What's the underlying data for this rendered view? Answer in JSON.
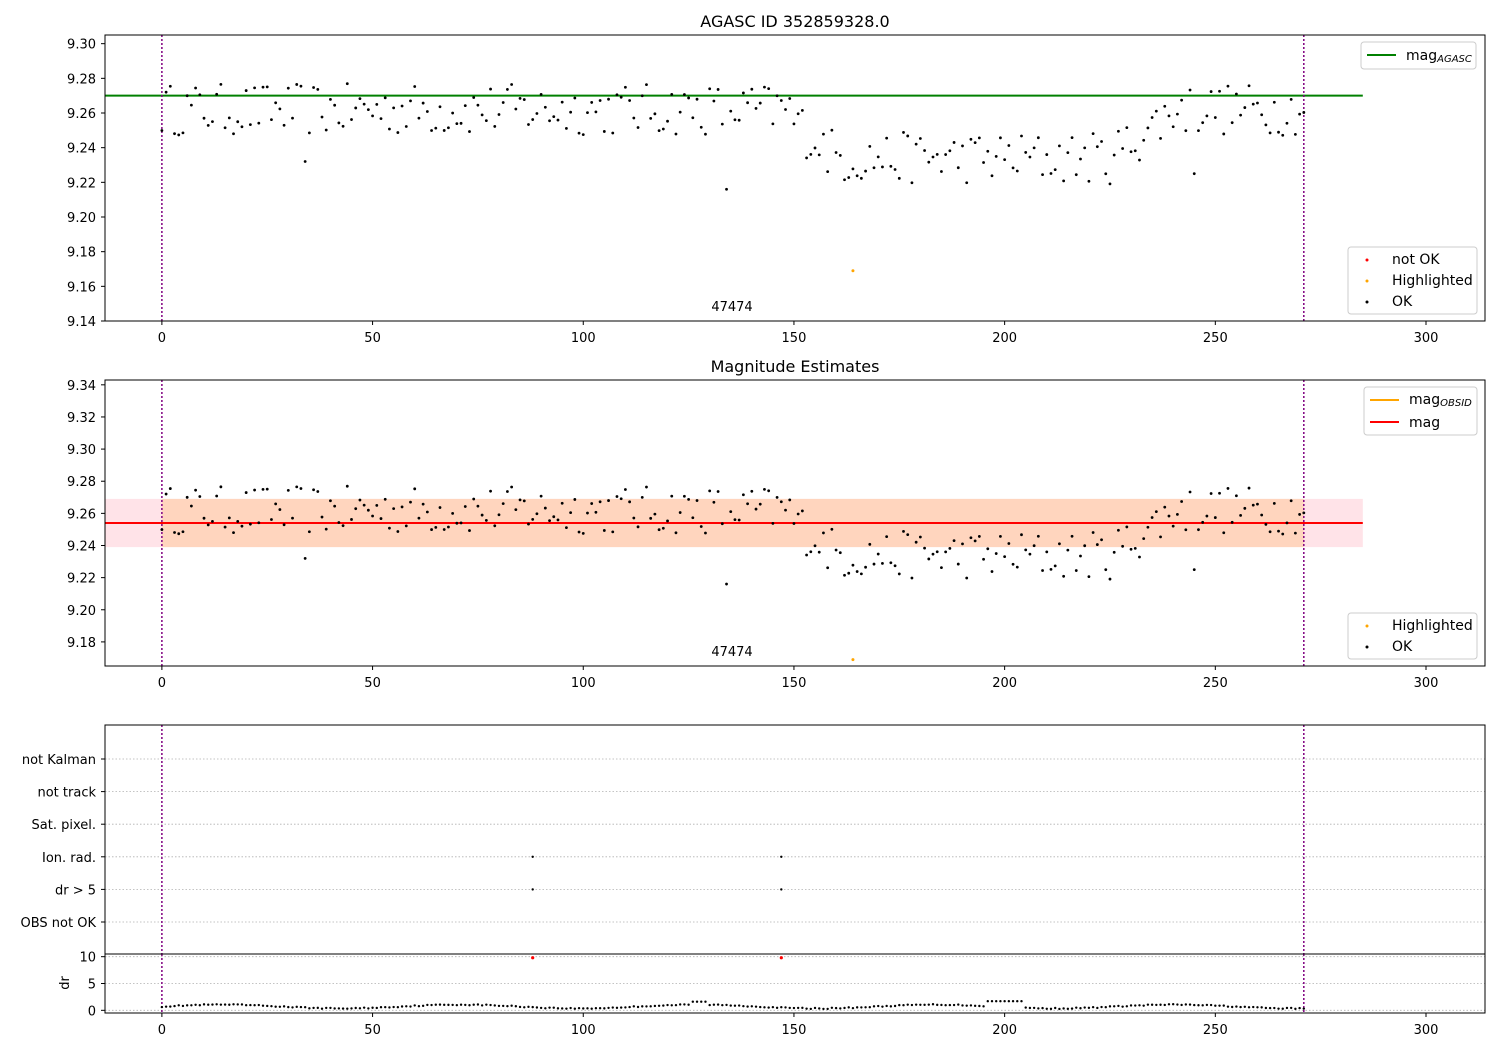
{
  "colors": {
    "agasc_line": "#008000",
    "mag_line": "#ff0000",
    "mag_obsid": "#ffa500",
    "band_outer": "#ffc0cb",
    "band_inner": "#ffd0b0",
    "ok_point": "#000000",
    "highlighted_point": "#ffa500",
    "not_ok_point": "#ff0000",
    "obs_boundary": "#800080",
    "grid": "#b0b0b0"
  },
  "chart_data": [
    {
      "id": "top",
      "type": "scatter",
      "title": "AGASC ID 352859328.0",
      "xlabel": "",
      "ylabel": "",
      "xlim": [
        -13.5,
        314
      ],
      "ylim": [
        9.14,
        9.305
      ],
      "xticks": [
        0,
        50,
        100,
        150,
        200,
        250,
        300
      ],
      "yticks": [
        "9.14",
        "9.16",
        "9.18",
        "9.20",
        "9.22",
        "9.24",
        "9.26",
        "9.28",
        "9.30"
      ],
      "obs_boundaries": [
        0,
        271
      ],
      "obs_label": "47474",
      "obs_label_x": 135.5,
      "agasc_mag": 9.27,
      "agasc_mag_x_range": [
        -13.5,
        285
      ],
      "highlighted_point": {
        "x": 164,
        "y": 9.169
      },
      "legends": [
        {
          "position": "upper right",
          "entries": [
            {
              "label": "mag",
              "subscript": "AGASC",
              "kind": "line",
              "color": "#008000"
            }
          ]
        },
        {
          "position": "lower right",
          "entries": [
            {
              "label": "not OK",
              "kind": "dot",
              "color": "#ff0000"
            },
            {
              "label": "Highlighted",
              "kind": "dot",
              "color": "#ffa500"
            },
            {
              "label": "OK",
              "kind": "dot",
              "color": "#000000"
            }
          ]
        }
      ]
    },
    {
      "id": "middle",
      "type": "scatter",
      "title": "Magnitude Estimates",
      "xlabel": "",
      "ylabel": "",
      "xlim": [
        -13.5,
        314
      ],
      "ylim": [
        9.165,
        9.343
      ],
      "xticks": [
        0,
        50,
        100,
        150,
        200,
        250,
        300
      ],
      "yticks": [
        "9.18",
        "9.20",
        "9.22",
        "9.24",
        "9.26",
        "9.28",
        "9.30",
        "9.32",
        "9.34"
      ],
      "obs_boundaries": [
        0,
        271
      ],
      "obs_label": "47474",
      "obs_label_x": 135.5,
      "mag": 9.254,
      "mag_band": [
        9.239,
        9.269
      ],
      "mag_x_range": [
        -13.5,
        285
      ],
      "mag_obsid": 9.254,
      "mag_obsid_band": [
        9.239,
        9.269
      ],
      "mag_obsid_x_range": [
        0,
        271
      ],
      "highlighted_point": {
        "x": 164,
        "y": 9.169
      },
      "legends": [
        {
          "position": "upper right",
          "entries": [
            {
              "label": "mag",
              "subscript": "OBSID",
              "kind": "line",
              "color": "#ffa500"
            },
            {
              "label": "mag",
              "subscript": "",
              "kind": "line",
              "color": "#ff0000"
            }
          ]
        },
        {
          "position": "lower right",
          "entries": [
            {
              "label": "Highlighted",
              "kind": "dot",
              "color": "#ffa500"
            },
            {
              "label": "OK",
              "kind": "dot",
              "color": "#000000"
            }
          ]
        }
      ]
    },
    {
      "id": "flags",
      "type": "scatter",
      "title": "",
      "xlim": [
        -13.5,
        314
      ],
      "categories": [
        "not Kalman",
        "not track",
        "Sat. pixel.",
        "Ion. rad.",
        "dr > 5",
        "OBS not OK"
      ],
      "obs_boundaries": [
        0,
        271
      ],
      "points": [
        {
          "x": 88,
          "category": "Ion. rad."
        },
        {
          "x": 147,
          "category": "Ion. rad."
        },
        {
          "x": 88,
          "category": "dr > 5"
        },
        {
          "x": 147,
          "category": "dr > 5"
        }
      ]
    },
    {
      "id": "dr",
      "type": "scatter",
      "title": "",
      "ylabel": "dr",
      "xlim": [
        -13.5,
        314
      ],
      "ylim": [
        -0.5,
        10.5
      ],
      "xticks": [
        0,
        50,
        100,
        150,
        200,
        250,
        300
      ],
      "yticks": [
        "0",
        "5",
        "10"
      ],
      "obs_boundaries": [
        0,
        271
      ],
      "flagged_points": [
        {
          "x": 88,
          "y": 9.8
        },
        {
          "x": 147,
          "y": 9.8
        }
      ]
    }
  ]
}
